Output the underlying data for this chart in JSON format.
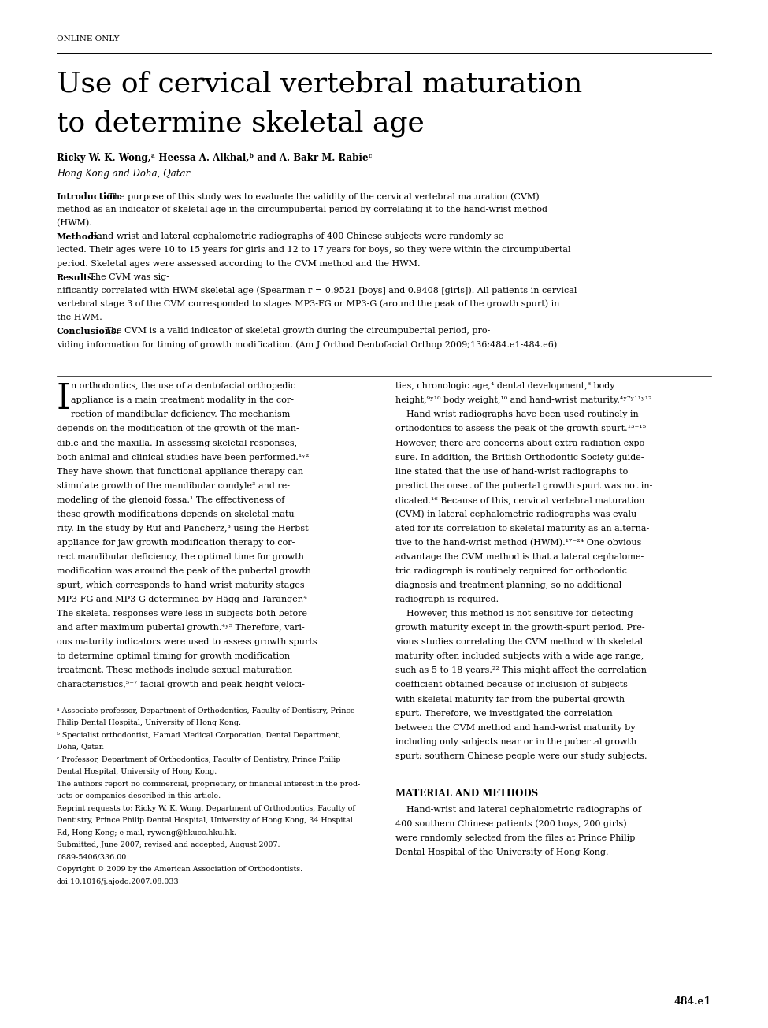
{
  "page_width": 9.75,
  "page_height": 13.05,
  "dpi": 100,
  "bg": "#ffffff",
  "ml": 0.72,
  "mr": 0.72,
  "mt": 0.45,
  "mb": 0.45,
  "online_only": "ONLINE ONLY",
  "title_line1": "Use of cervical vertebral maturation",
  "title_line2": "to determine skeletal age",
  "authors": "Ricky W. K. Wong,ᵃ Heessa A. Alkhal,ᵇ and A. Bakr M. Rabieᶜ",
  "affiliation": "Hong Kong and Doha, Qatar",
  "abstract_lines": [
    {
      "bold": "Introduction:",
      "text": " The purpose of this study was to evaluate the validity of the cervical vertebral maturation (CVM)"
    },
    {
      "bold": "",
      "text": "method as an indicator of skeletal age in the circumpubertal period by correlating it to the hand-wrist method"
    },
    {
      "bold": "",
      "text": "(HWM). "
    },
    {
      "bold": "Methods:",
      "text": " Hand-wrist and lateral cephalometric radiographs of 400 Chinese subjects were randomly se-"
    },
    {
      "bold": "",
      "text": "lected. Their ages were 10 to 15 years for girls and 12 to 17 years for boys, so they were within the circumpubertal"
    },
    {
      "bold": "",
      "text": "period. Skeletal ages were assessed according to the CVM method and the HWM. "
    },
    {
      "bold": "Results:",
      "text": " The CVM was sig-"
    },
    {
      "bold": "",
      "text": "nificantly correlated with HWM skeletal age (Spearman r = 0.9521 [boys] and 0.9408 [girls]). All patients in cervical"
    },
    {
      "bold": "",
      "text": "vertebral stage 3 of the CVM corresponded to stages MP3-FG or MP3-G (around the peak of the growth spurt) in"
    },
    {
      "bold": "",
      "text": "the HWM. "
    },
    {
      "bold": "Conclusions:",
      "text": " The CVM is a valid indicator of skeletal growth during the circumpubertal period, pro-"
    },
    {
      "bold": "",
      "text": "viding information for timing of growth modification. (Am J Orthod Dentofacial Orthop 2009;136:484.e1-484.e6)"
    }
  ],
  "col1_lines": [
    "n orthodontics, the use of a dentofacial orthopedic",
    "appliance is a main treatment modality in the cor-",
    "rection of mandibular deficiency. The mechanism",
    "depends on the modification of the growth of the man-",
    "dible and the maxilla. In assessing skeletal responses,",
    "both animal and clinical studies have been performed.¹ʸ²",
    "They have shown that functional appliance therapy can",
    "stimulate growth of the mandibular condyle³ and re-",
    "modeling of the glenoid fossa.¹ The effectiveness of",
    "these growth modifications depends on skeletal matu-",
    "rity. In the study by Ruf and Pancherz,³ using the Herbst",
    "appliance for jaw growth modification therapy to cor-",
    "rect mandibular deficiency, the optimal time for growth",
    "modification was around the peak of the pubertal growth",
    "spurt, which corresponds to hand-wrist maturity stages",
    "MP3-FG and MP3-G determined by Hägg and Taranger.⁴",
    "The skeletal responses were less in subjects both before",
    "and after maximum pubertal growth.⁴ʸ⁵ Therefore, vari-",
    "ous maturity indicators were used to assess growth spurts",
    "to determine optimal timing for growth modification",
    "treatment. These methods include sexual maturation",
    "characteristics,⁵⁻⁷ facial growth and peak height veloci-"
  ],
  "col2_lines": [
    "ties, chronologic age,⁴ dental development,⁸ body",
    "height,⁹ʸ¹⁰ body weight,¹⁰ and hand-wrist maturity.⁴ʸ⁷ʸ¹¹ʸ¹²",
    "    Hand-wrist radiographs have been used routinely in",
    "orthodontics to assess the peak of the growth spurt.¹³⁻¹⁵",
    "However, there are concerns about extra radiation expo-",
    "sure. In addition, the British Orthodontic Society guide-",
    "line stated that the use of hand-wrist radiographs to",
    "predict the onset of the pubertal growth spurt was not in-",
    "dicated.¹⁶ Because of this, cervical vertebral maturation",
    "(CVM) in lateral cephalometric radiographs was evalu-",
    "ated for its correlation to skeletal maturity as an alterna-",
    "tive to the hand-wrist method (HWM).¹⁷⁻²⁴ One obvious",
    "advantage the CVM method is that a lateral cephalome-",
    "tric radiograph is routinely required for orthodontic",
    "diagnosis and treatment planning, so no additional",
    "radiograph is required.",
    "    However, this method is not sensitive for detecting",
    "growth maturity except in the growth-spurt period. Pre-",
    "vious studies correlating the CVM method with skeletal",
    "maturity often included subjects with a wide age range,",
    "such as 5 to 18 years.²² This might affect the correlation",
    "coefficient obtained because of inclusion of subjects",
    "with skeletal maturity far from the pubertal growth",
    "spurt. Therefore, we investigated the correlation",
    "between the CVM method and hand-wrist maturity by",
    "including only subjects near or in the pubertal growth",
    "spurt; southern Chinese people were our study subjects."
  ],
  "footnotes": [
    "ᵃ Associate professor, Department of Orthodontics, Faculty of Dentistry, Prince",
    "Philip Dental Hospital, University of Hong Kong.",
    "ᵇ Specialist orthodontist, Hamad Medical Corporation, Dental Department,",
    "Doha, Qatar.",
    "ᶜ Professor, Department of Orthodontics, Faculty of Dentistry, Prince Philip",
    "Dental Hospital, University of Hong Kong.",
    "The authors report no commercial, proprietary, or financial interest in the prod-",
    "ucts or companies described in this article.",
    "Reprint requests to: Ricky W. K. Wong, Department of Orthodontics, Faculty of",
    "Dentistry, Prince Philip Dental Hospital, University of Hong Kong, 34 Hospital",
    "Rd, Hong Kong; e-mail, rywong@hkucc.hku.hk.",
    "Submitted, June 2007; revised and accepted, August 2007.",
    "0889-5406/336.00",
    "Copyright © 2009 by the American Association of Orthodontists.",
    "doi:10.1016/j.ajodo.2007.08.033"
  ],
  "section_title": "MATERIAL AND METHODS",
  "section_body_lines": [
    "    Hand-wrist and lateral cephalometric radiographs of",
    "400 southern Chinese patients (200 boys, 200 girls)",
    "were randomly selected from the files at Prince Philip",
    "Dental Hospital of the University of Hong Kong."
  ],
  "page_number": "484.e1"
}
